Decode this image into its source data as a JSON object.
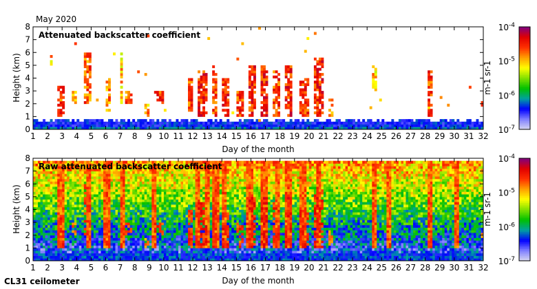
{
  "header": {
    "month": "May 2020",
    "instrument": "CL31 ceilometer"
  },
  "colors": {
    "scale": [
      "#d8d8f0",
      "#8080ff",
      "#0000ff",
      "#00a0a0",
      "#00c000",
      "#80e000",
      "#ffff00",
      "#ffa000",
      "#ff3000",
      "#e00000",
      "#800080"
    ]
  },
  "chart_data": [
    {
      "type": "heatmap",
      "title": "Attenuated backscatter coefficient",
      "xlabel": "Day of the month",
      "ylabel": "Height (km)",
      "xlim": [
        1,
        32
      ],
      "ylim": [
        0,
        8
      ],
      "xticks": [
        "1",
        "2",
        "3",
        "4",
        "5",
        "6",
        "7",
        "8",
        "9",
        "10",
        "11",
        "12",
        "13",
        "14",
        "15",
        "16",
        "17",
        "18",
        "19",
        "20",
        "21",
        "22",
        "23",
        "24",
        "25",
        "26",
        "27",
        "28",
        "29",
        "30",
        "31",
        "32"
      ],
      "yticks": [
        "0",
        "1",
        "2",
        "3",
        "4",
        "5",
        "6",
        "7",
        "8"
      ],
      "colorbar": {
        "label": "m-1 sr-1",
        "ticks": [
          "10-7",
          "10-6",
          "10-5",
          "10-4"
        ],
        "range_log10": [
          -7,
          -4
        ]
      },
      "boundary_layer_top_km": 0.8,
      "cloud_events": [
        {
          "day_start": 2.1,
          "day_end": 2.3,
          "base_km": 5,
          "top_km": 6.2,
          "log10_value": -5.0
        },
        {
          "day_start": 2.7,
          "day_end": 3.2,
          "base_km": 1,
          "top_km": 3.5,
          "log10_value": -4.6
        },
        {
          "day_start": 3.6,
          "day_end": 4.0,
          "base_km": 2,
          "top_km": 3,
          "log10_value": -4.8
        },
        {
          "day_start": 4.5,
          "day_end": 5.0,
          "base_km": 2,
          "top_km": 6,
          "log10_value": -4.7
        },
        {
          "day_start": 6.0,
          "day_end": 6.4,
          "base_km": 1.5,
          "top_km": 4,
          "log10_value": -4.8
        },
        {
          "day_start": 7.0,
          "day_end": 7.2,
          "base_km": 2,
          "top_km": 6,
          "log10_value": -5.0
        },
        {
          "day_start": 7.4,
          "day_end": 7.8,
          "base_km": 2,
          "top_km": 3,
          "log10_value": -4.7
        },
        {
          "day_start": 8.6,
          "day_end": 9.0,
          "base_km": 1,
          "top_km": 2,
          "log10_value": -4.9
        },
        {
          "day_start": 9.4,
          "day_end": 10.0,
          "base_km": 2,
          "top_km": 3,
          "log10_value": -4.6
        },
        {
          "day_start": 11.6,
          "day_end": 12.0,
          "base_km": 1,
          "top_km": 4,
          "log10_value": -4.6
        },
        {
          "day_start": 12.3,
          "day_end": 13.0,
          "base_km": 1,
          "top_km": 4.5,
          "log10_value": -4.5
        },
        {
          "day_start": 13.3,
          "day_end": 13.7,
          "base_km": 1,
          "top_km": 5,
          "log10_value": -4.6
        },
        {
          "day_start": 14.0,
          "day_end": 14.5,
          "base_km": 1,
          "top_km": 4,
          "log10_value": -4.5
        },
        {
          "day_start": 15.0,
          "day_end": 15.5,
          "base_km": 1,
          "top_km": 3,
          "log10_value": -4.6
        },
        {
          "day_start": 15.8,
          "day_end": 16.3,
          "base_km": 1,
          "top_km": 5,
          "log10_value": -4.5
        },
        {
          "day_start": 16.6,
          "day_end": 17.2,
          "base_km": 1,
          "top_km": 5,
          "log10_value": -4.5
        },
        {
          "day_start": 17.5,
          "day_end": 18.0,
          "base_km": 1,
          "top_km": 4.5,
          "log10_value": -4.6
        },
        {
          "day_start": 18.4,
          "day_end": 18.8,
          "base_km": 1,
          "top_km": 5,
          "log10_value": -4.5
        },
        {
          "day_start": 19.3,
          "day_end": 20.0,
          "base_km": 1,
          "top_km": 4,
          "log10_value": -4.6
        },
        {
          "day_start": 20.3,
          "day_end": 21.0,
          "base_km": 1,
          "top_km": 5.5,
          "log10_value": -4.5
        },
        {
          "day_start": 21.3,
          "day_end": 21.6,
          "base_km": 1,
          "top_km": 2.5,
          "log10_value": -4.8
        },
        {
          "day_start": 24.4,
          "day_end": 24.6,
          "base_km": 3,
          "top_km": 5,
          "log10_value": -5.0
        },
        {
          "day_start": 28.1,
          "day_end": 28.5,
          "base_km": 1,
          "top_km": 4.5,
          "log10_value": -4.6
        },
        {
          "day_start": 31.8,
          "day_end": 32.0,
          "base_km": 1.8,
          "top_km": 2.2,
          "log10_value": -4.8
        }
      ]
    },
    {
      "type": "heatmap",
      "title": "Raw attenuated backscatter coefficient",
      "xlabel": "Day of the month",
      "ylabel": "Height (km)",
      "xlim": [
        1,
        32
      ],
      "ylim": [
        0,
        8
      ],
      "xticks": [
        "1",
        "2",
        "3",
        "4",
        "5",
        "6",
        "7",
        "8",
        "9",
        "10",
        "11",
        "12",
        "13",
        "14",
        "15",
        "16",
        "17",
        "18",
        "19",
        "20",
        "21",
        "22",
        "23",
        "24",
        "25",
        "26",
        "27",
        "28",
        "29",
        "30",
        "31",
        "32"
      ],
      "yticks": [
        "0",
        "1",
        "2",
        "3",
        "4",
        "5",
        "6",
        "7",
        "8"
      ],
      "colorbar": {
        "label": "m-1 sr-1",
        "ticks": [
          "10-7",
          "10-6",
          "10-5",
          "10-4"
        ],
        "range_log10": [
          -7,
          -4
        ]
      },
      "noise_floor_log10_at_ground": -6.6,
      "noise_increase_log10_per_km": 0.22,
      "noisy_streak_days": [
        2.9,
        4.8,
        6.1,
        7.2,
        9.3,
        12.3,
        13.0,
        13.6,
        14.2,
        15.9,
        16.9,
        17.8,
        18.6,
        19.6,
        20.7,
        24.5,
        25.5,
        28.3,
        30.2
      ]
    }
  ]
}
